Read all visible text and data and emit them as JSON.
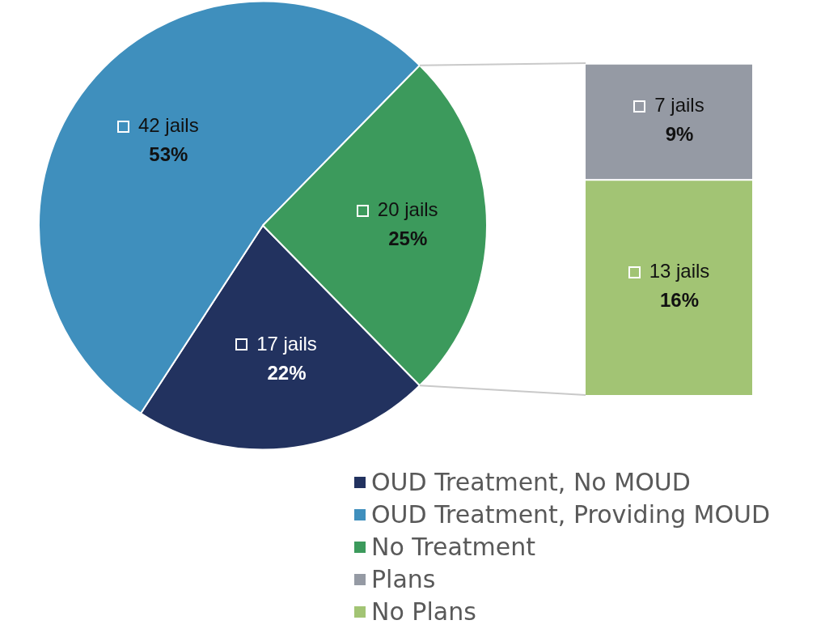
{
  "chart_data": [
    {
      "type": "pie",
      "categories": [
        "OUD Treatment, No MOUD",
        "OUD Treatment, Providing MOUD",
        "No Treatment"
      ],
      "values": [
        17,
        42,
        20
      ],
      "colors": [
        "#22325f",
        "#3f8fbd",
        "#3c9a5c"
      ],
      "value_labels": [
        "17 jails\n22%",
        "42 jails\n53%",
        "20 jails\n25%"
      ],
      "legend": "bottom"
    },
    {
      "type": "bar",
      "stacked": true,
      "categories": [
        null
      ],
      "tick_labels": false,
      "series": [
        {
          "name": "No Plans",
          "color": "#a2c474",
          "values": [
            13
          ],
          "value_labels": [
            "13 jails\n16%"
          ]
        },
        {
          "name": "Plans",
          "color": "#959aa4",
          "values": [
            7
          ],
          "value_labels": [
            "7 jails\n9%"
          ]
        }
      ],
      "legend": "bottom"
    }
  ]
}
